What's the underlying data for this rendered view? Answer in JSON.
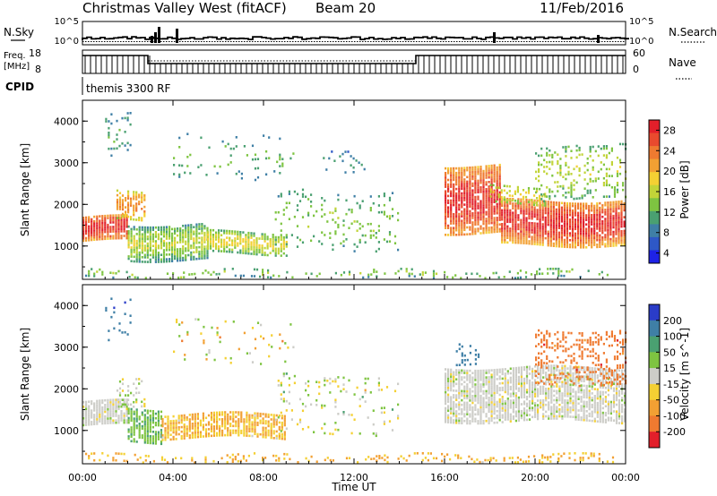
{
  "header": {
    "title": "Christmas Valley West (fitACF)",
    "beam": "Beam 20",
    "date": "11/Feb/2016"
  },
  "panels": {
    "nsky_label": "N.Sky",
    "nsearch_label": "N.Search",
    "freq_label_1": "Freq.",
    "freq_label_2": "[MHz]",
    "nave_label": "Nave",
    "cpid_label": "CPID",
    "cpid_value": "themis 3300 RF",
    "noise_ticks": [
      "10^5",
      "10^0"
    ],
    "freq_ticks": [
      "18",
      "8"
    ],
    "nave_ticks": [
      "60",
      "0"
    ]
  },
  "chart_data": [
    {
      "type": "heatmap",
      "title": "",
      "xlabel": "Time UT",
      "ylabel": "Slant Range [km]",
      "xlim": [
        0,
        24
      ],
      "ylim": [
        200,
        4500
      ],
      "x_ticks": [
        "00:00",
        "04:00",
        "08:00",
        "12:00",
        "16:00",
        "20:00",
        "00:00"
      ],
      "y_ticks": [
        1000,
        2000,
        3000,
        4000
      ],
      "colorbar": {
        "label": "Power [dB]",
        "ticks": [
          4,
          8,
          12,
          16,
          20,
          24,
          28
        ],
        "colors": [
          "#1e22e6",
          "#2e58c6",
          "#3f7fa6",
          "#4aa071",
          "#7ec441",
          "#c2d438",
          "#f4d033",
          "#f2a033",
          "#ef7a30",
          "#e94a2e",
          "#e21f2a"
        ]
      },
      "regions": [
        {
          "t0": 0.0,
          "t1": 2.0,
          "r0": 1100,
          "r1": 1700,
          "v0": 15,
          "v1": 28,
          "d": 0.9
        },
        {
          "t0": 1.5,
          "t1": 2.8,
          "r0": 1600,
          "r1": 2300,
          "v0": 10,
          "v1": 22,
          "d": 0.5
        },
        {
          "t0": 2.0,
          "t1": 5.5,
          "r0": 650,
          "r1": 1500,
          "v0": 4,
          "v1": 16,
          "d": 0.8
        },
        {
          "t0": 5.5,
          "t1": 9.0,
          "r0": 800,
          "r1": 1300,
          "v0": 6,
          "v1": 18,
          "d": 0.75
        },
        {
          "t0": 1.0,
          "t1": 2.2,
          "r0": 3200,
          "r1": 4200,
          "v0": 4,
          "v1": 12,
          "d": 0.15
        },
        {
          "t0": 4.0,
          "t1": 9.5,
          "r0": 2600,
          "r1": 3700,
          "v0": 4,
          "v1": 12,
          "d": 0.08
        },
        {
          "t0": 8.5,
          "t1": 14.0,
          "r0": 900,
          "r1": 2300,
          "v0": 4,
          "v1": 14,
          "d": 0.12
        },
        {
          "t0": 10.5,
          "t1": 12.5,
          "r0": 2800,
          "r1": 3300,
          "v0": 4,
          "v1": 10,
          "d": 0.08
        },
        {
          "t0": 0.0,
          "t1": 23.5,
          "r0": 200,
          "r1": 400,
          "v0": 4,
          "v1": 14,
          "d": 0.2
        },
        {
          "t0": 16.0,
          "t1": 18.5,
          "r0": 1300,
          "r1": 2900,
          "v0": 14,
          "v1": 28,
          "d": 0.85
        },
        {
          "t0": 18.5,
          "t1": 24.0,
          "r0": 1000,
          "r1": 2100,
          "v0": 12,
          "v1": 28,
          "d": 0.9
        },
        {
          "t0": 18.0,
          "t1": 20.5,
          "r0": 2000,
          "r1": 2400,
          "v0": 10,
          "v1": 18,
          "d": 0.4
        },
        {
          "t0": 20.0,
          "t1": 24.0,
          "r0": 2100,
          "r1": 3400,
          "v0": 6,
          "v1": 16,
          "d": 0.25
        }
      ]
    },
    {
      "type": "heatmap",
      "title": "",
      "xlabel": "Time UT",
      "ylabel": "Slant Range [km]",
      "xlim": [
        0,
        24
      ],
      "ylim": [
        200,
        4500
      ],
      "x_ticks": [
        "00:00",
        "04:00",
        "08:00",
        "12:00",
        "16:00",
        "20:00",
        "00:00"
      ],
      "y_ticks": [
        1000,
        2000,
        3000,
        4000
      ],
      "colorbar": {
        "label": "Velocity [m s^-1]",
        "ticks": [
          200,
          100,
          50,
          15,
          -15,
          -50,
          -100,
          -200
        ],
        "colors": [
          "#2a3cc8",
          "#3f7fa6",
          "#4aa071",
          "#7ec441",
          "#cdcdc8",
          "#f4d033",
          "#f2a033",
          "#ef7a30",
          "#e21f2a"
        ]
      },
      "regions": [
        {
          "t0": 0.0,
          "t1": 2.0,
          "r0": 1100,
          "r1": 1700,
          "v0": -15,
          "v1": 15,
          "d": 0.85
        },
        {
          "t0": 2.0,
          "t1": 3.5,
          "r0": 700,
          "r1": 1500,
          "v0": 20,
          "v1": 60,
          "d": 0.7
        },
        {
          "t0": 3.5,
          "t1": 9.0,
          "r0": 800,
          "r1": 1400,
          "v0": -80,
          "v1": -20,
          "d": 0.75
        },
        {
          "t0": 1.5,
          "t1": 2.8,
          "r0": 1600,
          "r1": 2300,
          "v0": -15,
          "v1": 40,
          "d": 0.3
        },
        {
          "t0": 1.0,
          "t1": 2.2,
          "r0": 3200,
          "r1": 4200,
          "v0": 100,
          "v1": 200,
          "d": 0.12
        },
        {
          "t0": 4.0,
          "t1": 9.5,
          "r0": 2600,
          "r1": 3700,
          "v0": -100,
          "v1": 50,
          "d": 0.05
        },
        {
          "t0": 8.5,
          "t1": 14.0,
          "r0": 900,
          "r1": 2300,
          "v0": -50,
          "v1": 50,
          "d": 0.1
        },
        {
          "t0": 0.0,
          "t1": 23.5,
          "r0": 200,
          "r1": 400,
          "v0": -80,
          "v1": -20,
          "d": 0.25
        },
        {
          "t0": 16.0,
          "t1": 24.0,
          "r0": 1200,
          "r1": 2500,
          "v0": -15,
          "v1": 15,
          "d": 0.8
        },
        {
          "t0": 16.5,
          "t1": 17.5,
          "r0": 2600,
          "r1": 3100,
          "v0": 100,
          "v1": 200,
          "d": 0.3
        },
        {
          "t0": 20.0,
          "t1": 24.0,
          "r0": 2100,
          "r1": 3400,
          "v0": -200,
          "v1": -100,
          "d": 0.3
        }
      ]
    }
  ]
}
